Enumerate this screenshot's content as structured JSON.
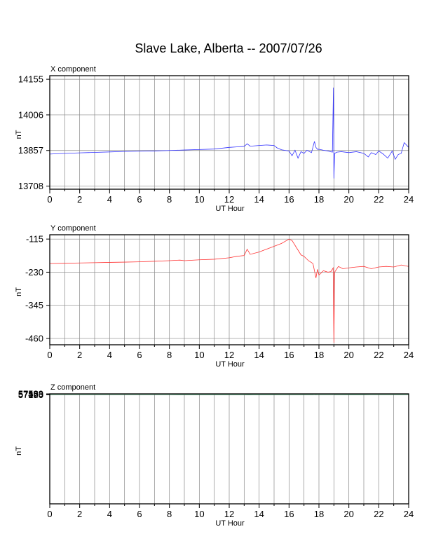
{
  "title": "Slave Lake, Alberta -- 2007/07/26",
  "chart_data": [
    {
      "type": "line",
      "name": "X component",
      "title": "X component",
      "xlabel": "UT Hour",
      "ylabel": "nT",
      "xlim": [
        0,
        24
      ],
      "ylim": [
        13695,
        14170
      ],
      "xticks": [
        0,
        2,
        4,
        6,
        8,
        10,
        12,
        14,
        16,
        18,
        20,
        22,
        24
      ],
      "yticks": [
        13708,
        13857,
        14006,
        14155
      ],
      "color": "#3333ff",
      "x": [
        0,
        1,
        2,
        3,
        4,
        5,
        6,
        7,
        8,
        9,
        10,
        11,
        12,
        12.5,
        13,
        13.2,
        13.4,
        14,
        14.5,
        15,
        15.2,
        15.5,
        16,
        16.2,
        16.4,
        16.6,
        16.8,
        17,
        17.2,
        17.5,
        17.7,
        17.8,
        17.9,
        18,
        18.3,
        18.6,
        18.9,
        18.97,
        19.0,
        19.05,
        19.2,
        19.5,
        20,
        20.5,
        21,
        21.3,
        21.5,
        21.8,
        22,
        22.3,
        22.6,
        22.9,
        23.1,
        23.3,
        23.5,
        23.7,
        24
      ],
      "y": [
        13842,
        13845,
        13847,
        13849,
        13851,
        13853,
        13854,
        13855,
        13857,
        13859,
        13861,
        13863,
        13870,
        13872,
        13874,
        13885,
        13875,
        13878,
        13880,
        13878,
        13868,
        13860,
        13855,
        13835,
        13858,
        13825,
        13852,
        13845,
        13858,
        13848,
        13895,
        13870,
        13862,
        13862,
        13858,
        13855,
        13850,
        14120,
        13740,
        13845,
        13850,
        13852,
        13848,
        13852,
        13845,
        13830,
        13848,
        13840,
        13855,
        13842,
        13825,
        13855,
        13820,
        13840,
        13845,
        13890,
        13870
      ]
    },
    {
      "type": "line",
      "name": "Y component",
      "title": "Y component",
      "xlabel": "UT Hour",
      "ylabel": "nT",
      "xlim": [
        0,
        24
      ],
      "ylim": [
        -482,
        -100
      ],
      "xticks": [
        0,
        2,
        4,
        6,
        8,
        10,
        12,
        14,
        16,
        18,
        20,
        22,
        24
      ],
      "yticks": [
        -115,
        -230,
        -345,
        -460
      ],
      "color": "#ff3333",
      "x": [
        0,
        1,
        2,
        3,
        4,
        5,
        6,
        7,
        8,
        8.7,
        9,
        10,
        11,
        12,
        12.5,
        13,
        13.2,
        13.4,
        14,
        14.5,
        15,
        15.5,
        16,
        16.2,
        16.5,
        16.8,
        17,
        17.3,
        17.6,
        17.8,
        17.9,
        18,
        18.3,
        18.6,
        18.8,
        18.95,
        19.0,
        19.05,
        19.3,
        19.6,
        20,
        20.5,
        21,
        21.5,
        22,
        22.5,
        23,
        23.5,
        24
      ],
      "y": [
        -200,
        -199,
        -198,
        -197,
        -196,
        -195,
        -194,
        -192,
        -190,
        -188,
        -190,
        -187,
        -185,
        -180,
        -175,
        -172,
        -150,
        -168,
        -160,
        -150,
        -140,
        -130,
        -115,
        -120,
        -145,
        -170,
        -175,
        -190,
        -200,
        -250,
        -220,
        -240,
        -225,
        -230,
        -228,
        -215,
        -475,
        -230,
        -210,
        -218,
        -215,
        -212,
        -210,
        -218,
        -212,
        -210,
        -212,
        -205,
        -210
      ]
    },
    {
      "type": "line",
      "name": "Z component",
      "title": "Z component",
      "xlabel": "UT Hour",
      "ylabel": "nT",
      "xlim": [
        0,
        24
      ],
      "ylim": [
        7160,
        57598
      ],
      "xticks": [
        0,
        2,
        4,
        6,
        8,
        10,
        12,
        14,
        16,
        18,
        20,
        22,
        24
      ],
      "yticks": [
        57190,
        57323,
        57456,
        57589
      ],
      "color": "#2e8b57",
      "x": [
        0,
        1,
        2,
        3,
        4,
        5,
        6,
        7,
        8,
        9,
        10,
        11,
        12,
        13,
        13.2,
        13.3,
        13.4,
        13.6,
        14,
        15,
        15.5,
        16,
        16.5,
        17,
        17.3,
        17.6,
        17.75,
        17.8,
        17.85,
        17.9,
        18,
        18.5,
        18.9,
        18.97,
        19.0,
        19.05,
        19.1,
        19.3,
        19.5,
        20,
        20.5,
        21,
        21.5,
        22,
        22.5,
        23,
        23.5,
        23.8,
        24
      ],
      "y": [
        57230,
        57230,
        57229,
        57228,
        57228,
        57227,
        57226,
        57225,
        57224,
        57222,
        57221,
        57220,
        57218,
        57216,
        57185,
        57212,
        57185,
        57212,
        57210,
        57208,
        57207,
        57205,
        57203,
        57201,
        57198,
        57196,
        57345,
        57170,
        57230,
        57230,
        57235,
        57236,
        57240,
        57589,
        57190,
        57205,
        57200,
        57202,
        57205,
        57208,
        57210,
        57218,
        57225,
        57232,
        57240,
        57245,
        57250,
        57272,
        57260
      ]
    }
  ]
}
